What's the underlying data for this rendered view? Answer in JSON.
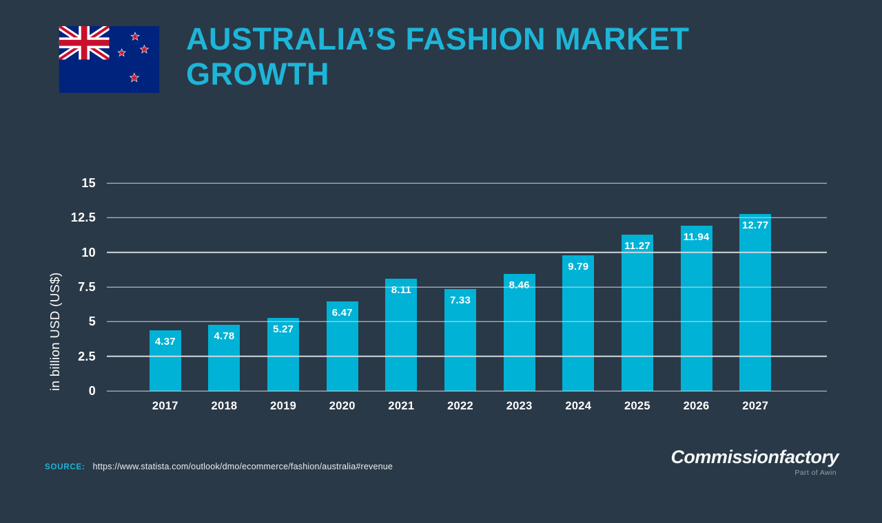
{
  "header": {
    "title": "AUSTRALIA’S FASHION MARKET GROWTH",
    "flag_icon": "new-zealand-flag-icon"
  },
  "chart_data": {
    "type": "bar",
    "title": "Australia’s Fashion Market Growth",
    "categories": [
      "2017",
      "2018",
      "2019",
      "2020",
      "2021",
      "2022",
      "2023",
      "2024",
      "2025",
      "2026",
      "2027"
    ],
    "values": [
      4.37,
      4.78,
      5.27,
      6.47,
      8.11,
      7.33,
      8.46,
      9.79,
      11.27,
      11.94,
      12.77
    ],
    "ylabel": "in billion USD (US$)",
    "ylim": [
      0,
      15
    ],
    "yticks": [
      0,
      2.5,
      5,
      7.5,
      10,
      12.5,
      15
    ],
    "grid": true,
    "legend_position": "none",
    "value_labels_inside_bars": true
  },
  "footer": {
    "source_label": "SOURCE:",
    "source_url": "https://www.statista.com/outlook/dmo/ecommerce/fashion/australia#revenue",
    "logo_text": "Commissionfactory",
    "logo_subtext": "Part of Awin"
  },
  "colors": {
    "background": "#2a3947",
    "accent": "#1db5d8",
    "bar": "#00b2d6",
    "gridline": "#cfd9de",
    "flag_blue": "#00247d",
    "flag_red": "#c8102e",
    "star_red": "#cc142b"
  }
}
